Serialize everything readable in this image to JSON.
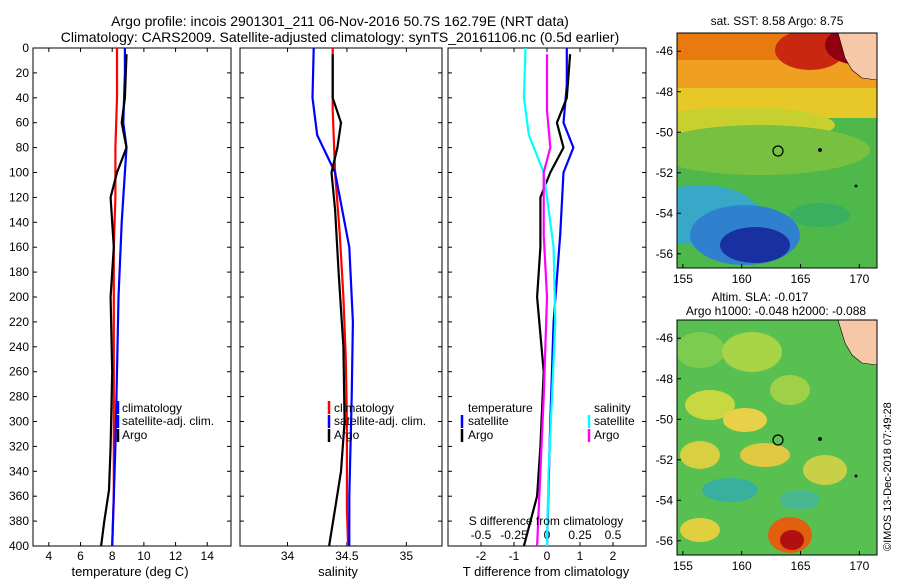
{
  "header": {
    "line1": "Argo profile: incois 2901301_211 06-Nov-2016 50.7S 162.79E (NRT data)",
    "line2": "Climatology: CARS2009. Satellite-adjusted climatology: synTS_20161106.nc (0.5d earlier)"
  },
  "colors": {
    "climatology": "#ff0000",
    "satellite": "#0000ff",
    "argo": "#000000",
    "sat_salinity": "#00ffff",
    "clim_salinity": "#ff00ff"
  },
  "chart_data": [
    {
      "type": "line",
      "id": "temperature",
      "xlabel": "temperature (deg C)",
      "xlim": [
        3,
        15.5
      ],
      "xticks": [
        4,
        6,
        8,
        10,
        12,
        14
      ],
      "ylim": [
        0,
        400
      ],
      "yticks": [
        0,
        20,
        40,
        60,
        80,
        100,
        120,
        140,
        160,
        180,
        200,
        220,
        240,
        260,
        280,
        300,
        320,
        340,
        360,
        380,
        400
      ],
      "legend": [
        "climatology",
        "satellite-adj. clim.",
        "Argo"
      ],
      "series": [
        {
          "name": "climatology",
          "color": "#ff0000",
          "x": [
            8.3,
            8.3,
            8.2,
            8.2,
            8.1,
            8.1,
            8.1,
            8.1,
            8.1,
            8.1,
            8.0
          ],
          "y": [
            0,
            40,
            80,
            120,
            160,
            200,
            240,
            280,
            320,
            360,
            400
          ]
        },
        {
          "name": "satellite-adj. clim.",
          "color": "#0000ff",
          "x": [
            8.8,
            8.8,
            8.7,
            8.9,
            8.8,
            8.6,
            8.4,
            8.3,
            8.2,
            8.1,
            8.0
          ],
          "y": [
            0,
            20,
            60,
            80,
            100,
            140,
            200,
            260,
            320,
            360,
            400
          ]
        },
        {
          "name": "Argo",
          "color": "#000000",
          "x": [
            8.9,
            8.8,
            8.6,
            8.9,
            8.3,
            7.9,
            8.1,
            7.9,
            8.0,
            7.9,
            7.8,
            7.5,
            7.3
          ],
          "y": [
            5,
            40,
            60,
            80,
            100,
            120,
            160,
            200,
            260,
            320,
            355,
            380,
            400
          ]
        }
      ]
    },
    {
      "type": "line",
      "id": "salinity",
      "xlabel": "salinity",
      "xlim": [
        33.6,
        35.3
      ],
      "xticks": [
        34,
        34.5,
        35
      ],
      "ylim": [
        0,
        400
      ],
      "legend": [
        "climatology",
        "satellite-adj. clim.",
        "Argo"
      ],
      "series": [
        {
          "name": "climatology",
          "color": "#ff0000",
          "x": [
            34.38,
            34.38,
            34.4,
            34.44,
            34.47,
            34.49,
            34.5,
            34.5,
            34.5,
            34.51
          ],
          "y": [
            0,
            50,
            100,
            150,
            200,
            250,
            300,
            340,
            370,
            400
          ]
        },
        {
          "name": "satellite-adj. clim.",
          "color": "#0000ff",
          "x": [
            34.22,
            34.21,
            34.25,
            34.4,
            34.52,
            34.55,
            34.54,
            34.53,
            34.52,
            34.52
          ],
          "y": [
            0,
            40,
            70,
            100,
            160,
            220,
            280,
            320,
            360,
            400
          ]
        },
        {
          "name": "Argo",
          "color": "#000000",
          "x": [
            34.38,
            34.38,
            34.45,
            34.42,
            34.37,
            34.4,
            34.43,
            34.47,
            34.48,
            34.45,
            34.4,
            34.35
          ],
          "y": [
            5,
            40,
            60,
            80,
            100,
            130,
            180,
            240,
            300,
            340,
            370,
            400
          ]
        }
      ]
    },
    {
      "type": "line",
      "id": "differences",
      "xlabel": "T difference from climatology",
      "xlabel_top": "S difference from climatology",
      "xlim": [
        -3,
        3
      ],
      "xticks": [
        -2,
        -1,
        0,
        1,
        2
      ],
      "top_ticks": [
        "-0.5",
        "-0.25",
        "0",
        "0.25",
        "0.5"
      ],
      "ylim": [
        0,
        400
      ],
      "legend_temperature_title": "temperature",
      "legend_salinity_title": "salinity",
      "legend_temperature": [
        "satellite",
        "Argo"
      ],
      "legend_salinity": [
        "satellite",
        "Argo"
      ],
      "series": [
        {
          "name": "T satellite",
          "color": "#0000ff",
          "x": [
            0.6,
            0.6,
            0.5,
            0.8,
            0.5,
            0.4,
            0.2,
            0.1,
            0.0
          ],
          "y": [
            0,
            30,
            60,
            80,
            100,
            150,
            220,
            300,
            400
          ]
        },
        {
          "name": "T Argo",
          "color": "#000000",
          "x": [
            0.7,
            0.6,
            0.3,
            0.5,
            0.1,
            -0.2,
            -0.2,
            -0.3,
            -0.1,
            -0.2,
            -0.3,
            -0.7
          ],
          "y": [
            5,
            40,
            60,
            80,
            100,
            120,
            160,
            200,
            260,
            320,
            360,
            400
          ]
        },
        {
          "name": "S satellite",
          "color": "#00ffff",
          "x": [
            -0.65,
            -0.7,
            -0.55,
            -0.1,
            0.2,
            0.25,
            0.15,
            0.05,
            0.0
          ],
          "y": [
            0,
            40,
            70,
            100,
            160,
            220,
            280,
            340,
            400
          ]
        },
        {
          "name": "S Argo",
          "color": "#ff00ff",
          "x": [
            0.0,
            0.0,
            0.1,
            -0.1,
            -0.1,
            0.0,
            -0.1,
            -0.2,
            -0.3
          ],
          "y": [
            5,
            50,
            80,
            100,
            150,
            200,
            280,
            340,
            400
          ]
        }
      ]
    }
  ],
  "maps": [
    {
      "title": "sat. SST: 8.58 Argo: 8.75",
      "xticks": [
        "155",
        "160",
        "165",
        "170"
      ],
      "yticks": [
        "-46",
        "-48",
        "-50",
        "-52",
        "-54",
        "-56"
      ],
      "profile": [
        162.79,
        -50.7
      ]
    },
    {
      "title1": "Altim. SLA: -0.017",
      "title2": "Argo h1000: -0.048 h2000: -0.088",
      "xticks": [
        "155",
        "160",
        "165",
        "170"
      ],
      "yticks": [
        "-46",
        "-48",
        "-50",
        "-52",
        "-54",
        "-56"
      ],
      "profile": [
        162.79,
        -50.7
      ]
    }
  ],
  "watermark": "©IMOS 13-Dec-2018 07:49:28"
}
